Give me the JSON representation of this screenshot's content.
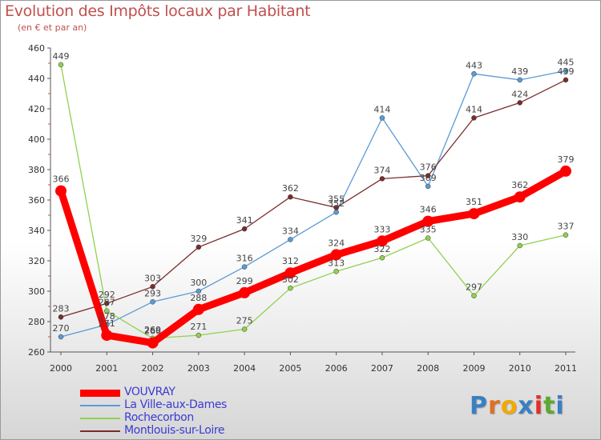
{
  "title": "Evolution des Impôts locaux par Habitant",
  "subtitle": "(en € et par an)",
  "logo": {
    "text": "Proxiti",
    "letters": [
      "P",
      "r",
      "o",
      "x",
      "i",
      "t",
      "i"
    ],
    "colors": [
      "#3a7fc1",
      "#e07020",
      "#f2a900",
      "#3a7fc1",
      "#e0302a",
      "#5aaa30",
      "#3a7fc1"
    ]
  },
  "chart_data": {
    "type": "line",
    "title": "Evolution des Impôts locaux par Habitant",
    "subtitle": "(en € et par an)",
    "xlabel": "",
    "ylabel": "",
    "ylim": [
      260,
      460
    ],
    "yticks": [
      260,
      280,
      300,
      320,
      340,
      360,
      380,
      400,
      420,
      440,
      460
    ],
    "categories": [
      "2000",
      "2001",
      "2002",
      "2003",
      "2004",
      "2005",
      "2006",
      "2007",
      "2008",
      "2009",
      "2010",
      "2011"
    ],
    "legend_position": "bottom-left",
    "series": [
      {
        "name": "VOUVRAY",
        "color": "#ff0000",
        "stroke_width": 9,
        "marker": 7,
        "values": [
          366,
          271,
          266,
          288,
          299,
          312,
          324,
          333,
          346,
          351,
          362,
          379
        ]
      },
      {
        "name": "La Ville-aux-Dames",
        "color": "#5b9bd5",
        "stroke_width": 1.3,
        "marker": 3,
        "values": [
          270,
          278,
          293,
          300,
          316,
          334,
          352,
          414,
          369,
          443,
          439,
          445
        ]
      },
      {
        "name": "Rochecorbon",
        "color": "#92d050",
        "stroke_width": 1.3,
        "marker": 3,
        "values": [
          449,
          287,
          269,
          271,
          275,
          302,
          313,
          322,
          335,
          297,
          330,
          337
        ]
      },
      {
        "name": "Montlouis-sur-Loire",
        "color": "#7b2c2c",
        "stroke_width": 1.3,
        "marker": 3,
        "values": [
          283,
          292,
          303,
          329,
          341,
          362,
          355,
          374,
          376,
          414,
          424,
          439
        ]
      }
    ]
  }
}
